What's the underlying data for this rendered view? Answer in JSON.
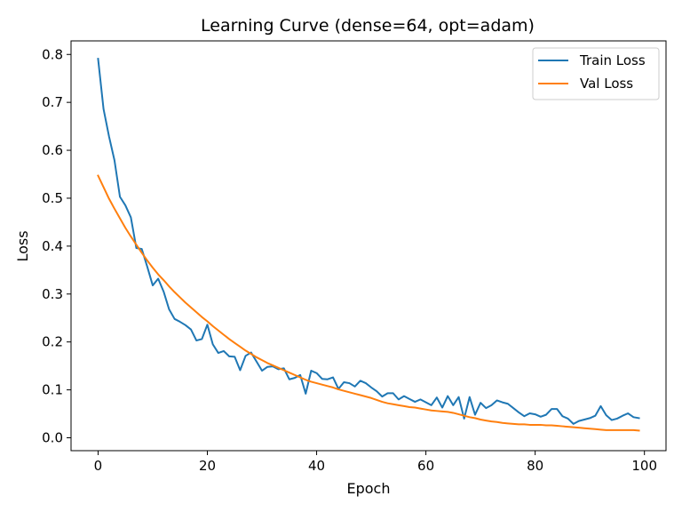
{
  "chart_data": {
    "type": "line",
    "title": "Learning Curve (dense=64, opt=adam)",
    "xlabel": "Epoch",
    "ylabel": "Loss",
    "xlim": [
      -4.95,
      103.95
    ],
    "ylim": [
      -0.0269,
      0.8283
    ],
    "xticks": [
      0,
      20,
      40,
      60,
      80,
      100
    ],
    "yticks": [
      0.0,
      0.1,
      0.2,
      0.3,
      0.4,
      0.5,
      0.6,
      0.7,
      0.8
    ],
    "xtick_labels": [
      "0",
      "20",
      "40",
      "60",
      "80",
      "100"
    ],
    "ytick_labels": [
      "0.0",
      "0.1",
      "0.2",
      "0.3",
      "0.4",
      "0.5",
      "0.6",
      "0.7",
      "0.8"
    ],
    "grid": false,
    "legend_position": "top-right",
    "series": [
      {
        "name": "Train Loss",
        "color": "#1f77b4",
        "x": [
          0,
          1,
          2,
          3,
          4,
          5,
          6,
          7,
          8,
          9,
          10,
          11,
          12,
          13,
          14,
          15,
          16,
          17,
          18,
          19,
          20,
          21,
          22,
          23,
          24,
          25,
          26,
          27,
          28,
          29,
          30,
          31,
          32,
          33,
          34,
          35,
          36,
          37,
          38,
          39,
          40,
          41,
          42,
          43,
          44,
          45,
          46,
          47,
          48,
          49,
          50,
          51,
          52,
          53,
          54,
          55,
          56,
          57,
          58,
          59,
          60,
          61,
          62,
          63,
          64,
          65,
          66,
          67,
          68,
          69,
          70,
          71,
          72,
          73,
          74,
          75,
          76,
          77,
          78,
          79,
          80,
          81,
          82,
          83,
          84,
          85,
          86,
          87,
          88,
          89,
          90,
          91,
          92,
          93,
          94,
          95,
          96,
          97,
          98,
          99
        ],
        "values": [
          0.791,
          0.686,
          0.629,
          0.579,
          0.503,
          0.485,
          0.46,
          0.396,
          0.394,
          0.357,
          0.318,
          0.332,
          0.305,
          0.268,
          0.248,
          0.242,
          0.235,
          0.226,
          0.203,
          0.206,
          0.236,
          0.195,
          0.177,
          0.181,
          0.17,
          0.169,
          0.141,
          0.171,
          0.178,
          0.159,
          0.14,
          0.148,
          0.149,
          0.143,
          0.145,
          0.122,
          0.125,
          0.131,
          0.092,
          0.14,
          0.135,
          0.123,
          0.122,
          0.126,
          0.102,
          0.116,
          0.114,
          0.107,
          0.119,
          0.114,
          0.105,
          0.097,
          0.086,
          0.093,
          0.093,
          0.08,
          0.087,
          0.081,
          0.075,
          0.08,
          0.074,
          0.068,
          0.084,
          0.063,
          0.087,
          0.068,
          0.085,
          0.04,
          0.085,
          0.048,
          0.073,
          0.062,
          0.068,
          0.078,
          0.074,
          0.071,
          0.062,
          0.053,
          0.045,
          0.051,
          0.049,
          0.044,
          0.048,
          0.06,
          0.06,
          0.045,
          0.04,
          0.029,
          0.035,
          0.038,
          0.041,
          0.046,
          0.066,
          0.047,
          0.037,
          0.04,
          0.046,
          0.051,
          0.043,
          0.041
        ]
      },
      {
        "name": "Val Loss",
        "color": "#ff7f0e",
        "x": [
          0,
          1,
          2,
          3,
          4,
          5,
          6,
          7,
          8,
          9,
          10,
          11,
          12,
          13,
          14,
          15,
          16,
          17,
          18,
          19,
          20,
          21,
          22,
          23,
          24,
          25,
          26,
          27,
          28,
          29,
          30,
          31,
          32,
          33,
          34,
          35,
          36,
          37,
          38,
          39,
          40,
          41,
          42,
          43,
          44,
          45,
          46,
          47,
          48,
          49,
          50,
          51,
          52,
          53,
          54,
          55,
          56,
          57,
          58,
          59,
          60,
          61,
          62,
          63,
          64,
          65,
          66,
          67,
          68,
          69,
          70,
          71,
          72,
          73,
          74,
          75,
          76,
          77,
          78,
          79,
          80,
          81,
          82,
          83,
          84,
          85,
          86,
          87,
          88,
          89,
          90,
          91,
          92,
          93,
          94,
          95,
          96,
          97,
          98,
          99
        ],
        "values": [
          0.547,
          0.523,
          0.499,
          0.478,
          0.458,
          0.438,
          0.42,
          0.403,
          0.386,
          0.37,
          0.355,
          0.341,
          0.329,
          0.316,
          0.304,
          0.293,
          0.282,
          0.272,
          0.262,
          0.252,
          0.243,
          0.233,
          0.224,
          0.215,
          0.206,
          0.198,
          0.19,
          0.182,
          0.175,
          0.168,
          0.162,
          0.156,
          0.151,
          0.146,
          0.141,
          0.136,
          0.131,
          0.126,
          0.121,
          0.117,
          0.114,
          0.111,
          0.108,
          0.105,
          0.101,
          0.098,
          0.095,
          0.092,
          0.089,
          0.086,
          0.083,
          0.079,
          0.075,
          0.072,
          0.07,
          0.068,
          0.066,
          0.064,
          0.063,
          0.061,
          0.059,
          0.057,
          0.056,
          0.055,
          0.054,
          0.052,
          0.049,
          0.046,
          0.043,
          0.041,
          0.038,
          0.036,
          0.034,
          0.033,
          0.031,
          0.03,
          0.029,
          0.028,
          0.028,
          0.027,
          0.027,
          0.027,
          0.026,
          0.026,
          0.025,
          0.024,
          0.023,
          0.022,
          0.021,
          0.02,
          0.019,
          0.018,
          0.017,
          0.016,
          0.016,
          0.016,
          0.016,
          0.016,
          0.016,
          0.015
        ]
      }
    ]
  }
}
